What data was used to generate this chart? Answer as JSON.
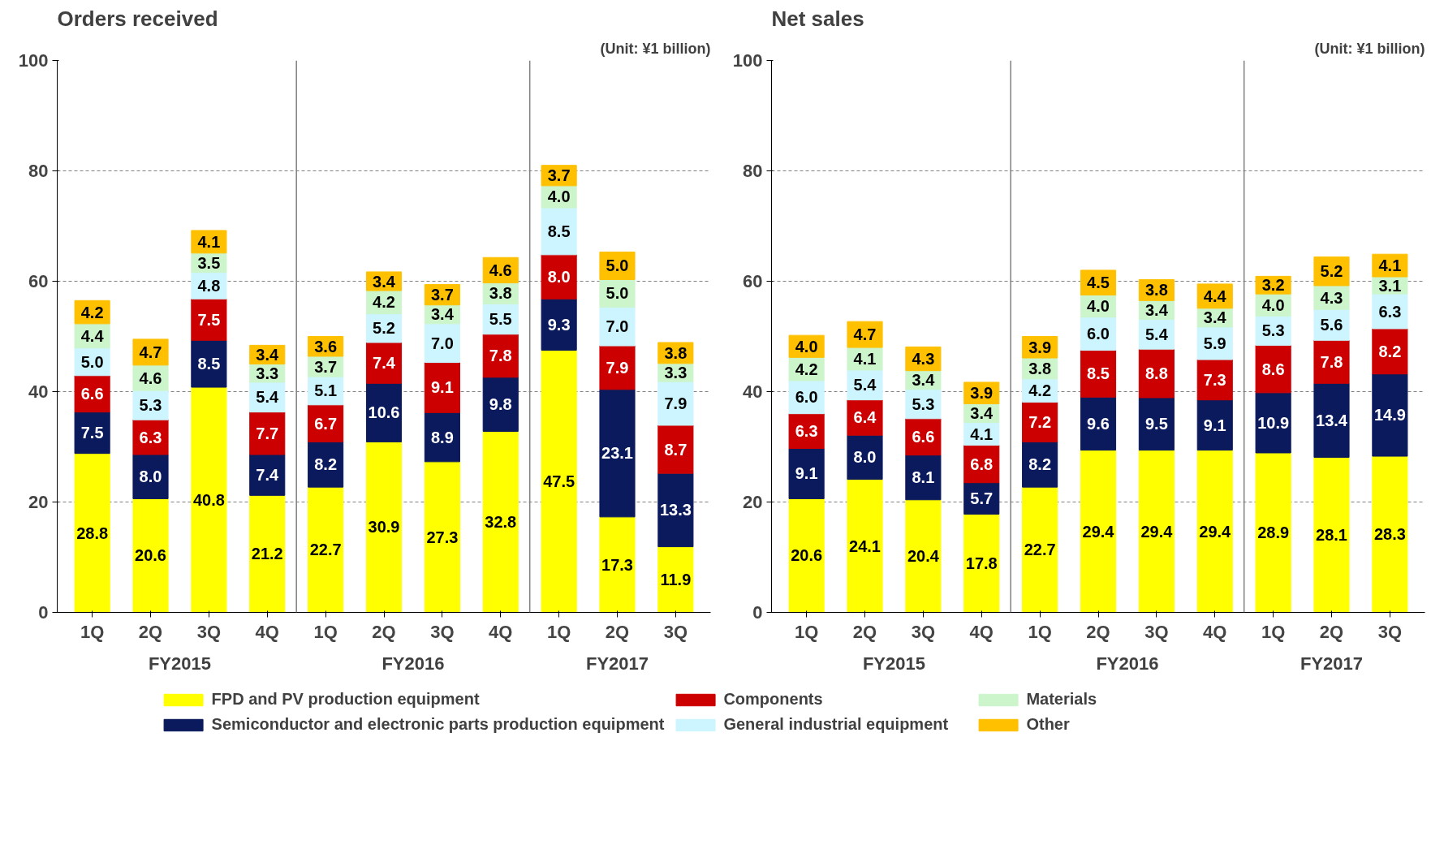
{
  "chart_data": [
    {
      "type": "bar",
      "title": "Orders received",
      "subtitle": "(Unit: ¥1 billion)",
      "stacked": true,
      "data_labels": true,
      "grid": "y",
      "legend": "bottom",
      "ylim": [
        0,
        100
      ],
      "yticks": [
        0,
        20,
        40,
        60,
        80,
        100
      ],
      "categories": [
        "1Q",
        "2Q",
        "3Q",
        "4Q",
        "1Q",
        "2Q",
        "3Q",
        "4Q",
        "1Q",
        "2Q",
        "3Q"
      ],
      "annotations": [
        "FY2015",
        "FY2016",
        "FY2017"
      ],
      "series": [
        {
          "name": "FPD and PV production equipment",
          "color": "#ffff00",
          "values": [
            28.8,
            20.6,
            40.8,
            21.2,
            22.7,
            30.9,
            27.3,
            32.8,
            47.5,
            17.3,
            11.9
          ],
          "value_labels": [
            "28.8",
            "20.6",
            "40.8",
            "21.2",
            "22.7",
            "30.9",
            "27.3",
            "32.8",
            "47.5",
            "17.3",
            "11.9"
          ]
        },
        {
          "name": "Semiconductor and electronic parts production equipment",
          "color": "#0a1a5c",
          "values": [
            7.5,
            8.0,
            8.5,
            7.4,
            8.2,
            10.6,
            8.9,
            9.8,
            9.3,
            23.1,
            13.3
          ],
          "value_labels": [
            "7.5",
            "8.0",
            "8.5",
            "7.4",
            "8.2",
            "10.6",
            "8.9",
            "9.8",
            "9.3",
            "23.1",
            "13.3"
          ]
        },
        {
          "name": "Components",
          "color": "#cc0000",
          "values": [
            6.6,
            6.3,
            7.5,
            7.7,
            6.7,
            7.4,
            9.1,
            7.8,
            8.0,
            7.9,
            8.7
          ],
          "value_labels": [
            "6.6",
            "6.3",
            "7.5",
            "7.7",
            "6.7",
            "7.4",
            "9.1",
            "7.8",
            "8.0",
            "7.9",
            "8.7"
          ]
        },
        {
          "name": "General industrial equipment",
          "color": "#ccf5ff",
          "values": [
            5.0,
            5.3,
            4.8,
            5.4,
            5.1,
            5.2,
            7.0,
            5.5,
            8.5,
            7.0,
            7.9
          ],
          "value_labels": [
            "5.0",
            "5.3",
            "4.8",
            "5.4",
            "5.1",
            "5.2",
            "7.0",
            "5.5",
            "8.5",
            "7.0",
            "7.9"
          ]
        },
        {
          "name": "Materials",
          "color": "#ccf5cc",
          "values": [
            4.4,
            4.6,
            3.5,
            3.3,
            3.7,
            4.2,
            3.4,
            3.8,
            4.0,
            5.0,
            3.3
          ],
          "value_labels": [
            "4.4",
            "4.6",
            "3.5",
            "3.3",
            "3.7",
            "4.2",
            "3.4",
            "3.8",
            "4.0",
            "5.0",
            "3.3"
          ]
        },
        {
          "name": "Other",
          "color": "#ffc000",
          "values": [
            4.2,
            4.7,
            4.1,
            3.4,
            3.6,
            3.4,
            3.7,
            4.6,
            3.7,
            5.0,
            3.8
          ],
          "value_labels": [
            "4.2",
            "4.7",
            "4.1",
            "3.4",
            "3.6",
            "3.4",
            "3.7",
            "4.6",
            "3.7",
            "5.0",
            "3.8"
          ]
        }
      ]
    },
    {
      "type": "bar",
      "title": "Net sales",
      "subtitle": "(Unit: ¥1 billion)",
      "stacked": true,
      "data_labels": true,
      "grid": "y",
      "ylim": [
        0,
        100
      ],
      "yticks": [
        0,
        20,
        40,
        60,
        80,
        100
      ],
      "categories": [
        "1Q",
        "2Q",
        "3Q",
        "4Q",
        "1Q",
        "2Q",
        "3Q",
        "4Q",
        "1Q",
        "2Q",
        "3Q"
      ],
      "annotations": [
        "FY2015",
        "FY2016",
        "FY2017"
      ],
      "series": [
        {
          "color": "#ffff00",
          "values": [
            20.6,
            24.1,
            20.4,
            17.8,
            22.7,
            29.4,
            29.4,
            29.4,
            28.9,
            28.1,
            28.3
          ],
          "value_labels": [
            "20.6",
            "24.1",
            "20.4",
            "17.8",
            "22.7",
            "29.4",
            "29.4",
            "29.4",
            "28.9",
            "28.1",
            "28.3"
          ]
        },
        {
          "color": "#0a1a5c",
          "values": [
            9.1,
            8.0,
            8.1,
            5.7,
            8.2,
            9.6,
            9.5,
            9.1,
            10.9,
            13.4,
            14.9
          ],
          "value_labels": [
            "9.1",
            "8.0",
            "8.1",
            "5.7",
            "8.2",
            "9.6",
            "9.5",
            "9.1",
            "10.9",
            "13.4",
            "14.9"
          ]
        },
        {
          "color": "#cc0000",
          "values": [
            6.3,
            6.4,
            6.6,
            6.8,
            7.2,
            8.5,
            8.8,
            7.3,
            8.6,
            7.8,
            8.2
          ],
          "value_labels": [
            "6.3",
            "6.4",
            "6.6",
            "6.8",
            "7.2",
            "8.5",
            "8.8",
            "7.3",
            "8.6",
            "7.8",
            "8.2"
          ]
        },
        {
          "color": "#ccf5ff",
          "values": [
            6.0,
            5.4,
            5.3,
            4.1,
            4.2,
            6.0,
            5.4,
            5.9,
            5.3,
            5.6,
            6.3
          ],
          "value_labels": [
            "6.0",
            "5.4",
            "5.3",
            "4.1",
            "4.2",
            "6.0",
            "5.4",
            "5.9",
            "5.3",
            "5.6",
            "6.3"
          ]
        },
        {
          "color": "#ccf5cc",
          "values": [
            4.2,
            4.1,
            3.4,
            3.4,
            3.8,
            4.0,
            3.4,
            3.4,
            4.0,
            4.3,
            3.1
          ],
          "value_labels": [
            "4.2",
            "4.1",
            "3.4",
            "3.4",
            "3.8",
            "4.0",
            "3.4",
            "3.4",
            "4.0",
            "4.3",
            "3.1"
          ]
        },
        {
          "color": "#ffc000",
          "values": [
            4.0,
            4.7,
            4.3,
            3.9,
            3.9,
            4.5,
            3.8,
            4.4,
            3.2,
            5.2,
            4.1
          ],
          "value_labels": [
            "4.0",
            "4.7",
            "4.3",
            "3.9",
            "3.9",
            "4.5",
            "3.8",
            "4.4",
            "3.2",
            "5.2",
            "4.1"
          ]
        }
      ]
    }
  ]
}
